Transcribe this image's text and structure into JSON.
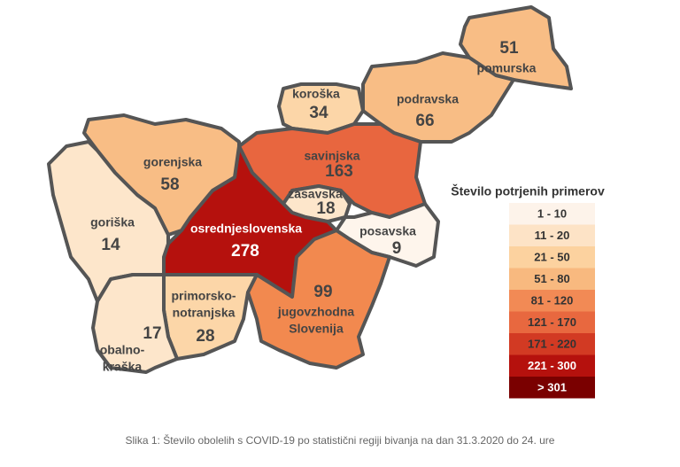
{
  "map": {
    "regions": [
      {
        "name_lines": [
          "pomurska"
        ],
        "value": 51,
        "color": "#f8bd85"
      },
      {
        "name_lines": [
          "podravska"
        ],
        "value": 66,
        "color": "#f8bd85"
      },
      {
        "name_lines": [
          "koroška"
        ],
        "value": 34,
        "color": "#fcd6a8"
      },
      {
        "name_lines": [
          "savinjska"
        ],
        "value": 163,
        "color": "#e8663f"
      },
      {
        "name_lines": [
          "zasavska"
        ],
        "value": 18,
        "color": "#fde6cb"
      },
      {
        "name_lines": [
          "posavska"
        ],
        "value": 9,
        "color": "#fef5ec"
      },
      {
        "name_lines": [
          "osrednjeslovenska"
        ],
        "value": 278,
        "color": "#b5110d"
      },
      {
        "name_lines": [
          "gorenjska"
        ],
        "value": 58,
        "color": "#f8bd85"
      },
      {
        "name_lines": [
          "goriška"
        ],
        "value": 14,
        "color": "#fde6cb"
      },
      {
        "name_lines": [
          "primorsko-",
          "notranjska"
        ],
        "value": 28,
        "color": "#fcd6a8"
      },
      {
        "name_lines": [
          "obalno-",
          "kraška"
        ],
        "value": 17,
        "color": "#fde6cb"
      },
      {
        "name_lines": [
          "jugovzhodna",
          "Slovenija"
        ],
        "value": 99,
        "color": "#f2894f"
      }
    ],
    "legend": {
      "title": "Število potrjenih primerov",
      "bins": [
        {
          "label": "1 - 10",
          "color": "#fdf3ea"
        },
        {
          "label": "11 - 20",
          "color": "#fde3c6"
        },
        {
          "label": "21 - 50",
          "color": "#fcd29f"
        },
        {
          "label": "51 - 80",
          "color": "#f8b97f"
        },
        {
          "label": "81 - 120",
          "color": "#f28a55"
        },
        {
          "label": "121 - 170",
          "color": "#e8683f"
        },
        {
          "label": "171 - 220",
          "color": "#d23a23"
        },
        {
          "label": "221 - 300",
          "color": "#b5110d"
        },
        {
          "label": "> 301",
          "color": "#7a0000"
        }
      ]
    },
    "caption": "Slika 1: Število obolelih s COVID-19 po statistični regiji bivanja na dan 31.3.2020 do 24. ure"
  }
}
